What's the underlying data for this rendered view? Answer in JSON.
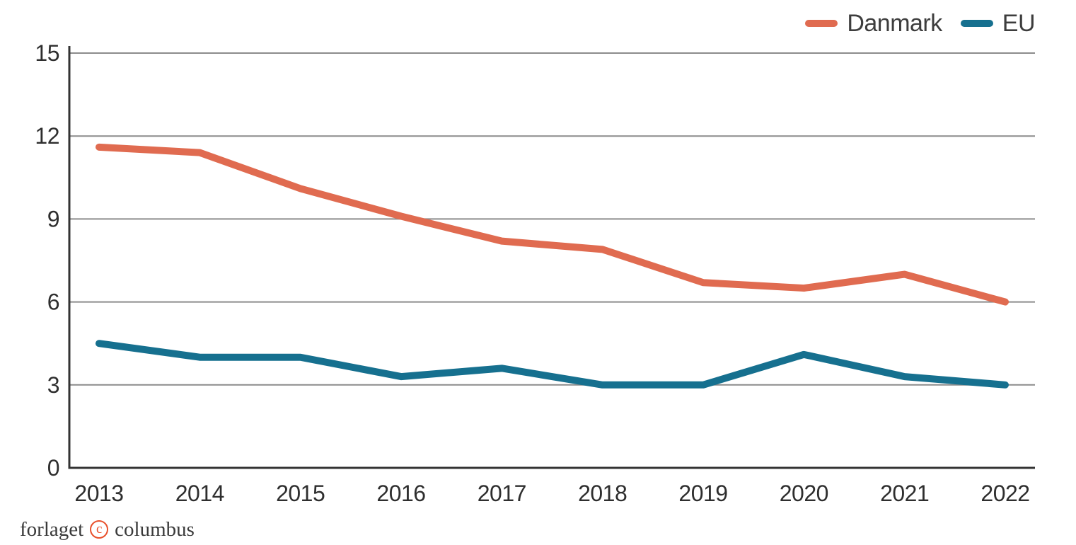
{
  "legend": {
    "position": "top-right"
  },
  "footer": {
    "logo_prefix": "forlaget",
    "logo_symbol": "c",
    "logo_suffix": "columbus"
  },
  "colors": {
    "background": "#FFFFFF",
    "gridline": "#8C8C8C",
    "axis": "#333333",
    "tick_text": "#2E2E2E",
    "logo_accent": "#E8502B"
  },
  "chart_data": {
    "type": "line",
    "categories": [
      "2013",
      "2014",
      "2015",
      "2016",
      "2017",
      "2018",
      "2019",
      "2020",
      "2021",
      "2022"
    ],
    "series": [
      {
        "name": "Danmark",
        "color": "#E06B50",
        "values": [
          11.6,
          11.4,
          10.1,
          9.1,
          8.2,
          7.9,
          6.7,
          6.5,
          7.0,
          6.0
        ]
      },
      {
        "name": "EU",
        "color": "#16708F",
        "values": [
          4.5,
          4.0,
          4.0,
          3.3,
          3.6,
          3.0,
          3.0,
          4.1,
          3.3,
          3.0
        ]
      }
    ],
    "yticks": [
      0,
      3,
      6,
      9,
      12,
      15
    ],
    "ylim": [
      0,
      15
    ],
    "grid": "horizontal",
    "legend_position": "top-right"
  }
}
